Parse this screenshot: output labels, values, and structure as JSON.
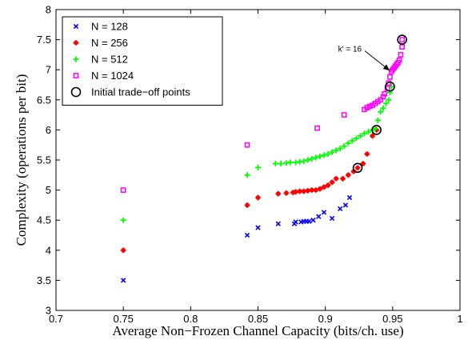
{
  "chart_data": {
    "type": "scatter",
    "title": "",
    "xlabel": "Average Non−Frozen Channel Capacity (bits/ch. use)",
    "ylabel": "Complexity (operations per bit)",
    "xlim": [
      0.7,
      1.0
    ],
    "ylim": [
      3,
      8
    ],
    "xticks": [
      "0.7",
      "0.75",
      "0.8",
      "0.85",
      "0.9",
      "0.95",
      "1"
    ],
    "yticks": [
      "3",
      "3.5",
      "4",
      "4.5",
      "5",
      "5.5",
      "6",
      "6.5",
      "7",
      "7.5",
      "8"
    ],
    "grid": false,
    "legend_position": "top-left",
    "series": [
      {
        "name": "N = 128",
        "marker": "x",
        "color": "#0000ff",
        "points": [
          [
            0.75,
            3.5
          ],
          [
            0.842,
            4.25
          ],
          [
            0.85,
            4.375
          ],
          [
            0.865,
            4.44
          ],
          [
            0.877,
            4.44
          ],
          [
            0.878,
            4.47
          ],
          [
            0.882,
            4.47
          ],
          [
            0.884,
            4.48
          ],
          [
            0.886,
            4.48
          ],
          [
            0.888,
            4.48
          ],
          [
            0.891,
            4.5
          ],
          [
            0.895,
            4.56
          ],
          [
            0.899,
            4.63
          ],
          [
            0.905,
            4.53
          ],
          [
            0.911,
            4.69
          ],
          [
            0.915,
            4.75
          ],
          [
            0.918,
            4.875
          ]
        ]
      },
      {
        "name": "N = 256",
        "marker": "*",
        "color": "#ff0000",
        "points": [
          [
            0.75,
            4.0
          ],
          [
            0.842,
            4.75
          ],
          [
            0.85,
            4.875
          ],
          [
            0.865,
            4.94
          ],
          [
            0.871,
            4.95
          ],
          [
            0.876,
            4.96
          ],
          [
            0.878,
            4.97
          ],
          [
            0.881,
            4.98
          ],
          [
            0.884,
            4.98
          ],
          [
            0.887,
            4.99
          ],
          [
            0.89,
            5.0
          ],
          [
            0.893,
            5.0
          ],
          [
            0.896,
            5.02
          ],
          [
            0.899,
            5.05
          ],
          [
            0.902,
            5.08
          ],
          [
            0.905,
            5.13
          ],
          [
            0.908,
            5.19
          ],
          [
            0.913,
            5.19
          ],
          [
            0.917,
            5.25
          ],
          [
            0.921,
            5.31
          ],
          [
            0.924,
            5.37
          ],
          [
            0.928,
            5.44
          ],
          [
            0.931,
            5.6
          ],
          [
            0.935,
            5.9
          ],
          [
            0.938,
            6.0
          ]
        ]
      },
      {
        "name": "N = 512",
        "marker": "+",
        "color": "#00ff00",
        "points": [
          [
            0.75,
            4.5
          ],
          [
            0.842,
            5.25
          ],
          [
            0.85,
            5.375
          ],
          [
            0.863,
            5.44
          ],
          [
            0.867,
            5.44
          ],
          [
            0.871,
            5.45
          ],
          [
            0.874,
            5.46
          ],
          [
            0.878,
            5.46
          ],
          [
            0.881,
            5.47
          ],
          [
            0.884,
            5.48
          ],
          [
            0.887,
            5.5
          ],
          [
            0.89,
            5.52
          ],
          [
            0.893,
            5.54
          ],
          [
            0.896,
            5.56
          ],
          [
            0.899,
            5.58
          ],
          [
            0.902,
            5.6
          ],
          [
            0.905,
            5.63
          ],
          [
            0.908,
            5.66
          ],
          [
            0.911,
            5.69
          ],
          [
            0.914,
            5.73
          ],
          [
            0.917,
            5.78
          ],
          [
            0.92,
            5.82
          ],
          [
            0.923,
            5.86
          ],
          [
            0.926,
            5.9
          ],
          [
            0.929,
            5.94
          ],
          [
            0.932,
            5.97
          ],
          [
            0.935,
            6.0
          ],
          [
            0.937,
            6.02
          ],
          [
            0.939,
            6.16
          ],
          [
            0.941,
            6.3
          ],
          [
            0.943,
            6.36
          ],
          [
            0.945,
            6.44
          ],
          [
            0.947,
            6.5
          ],
          [
            0.948,
            6.62
          ],
          [
            0.949,
            6.72
          ]
        ]
      },
      {
        "name": "N = 1024",
        "marker": "square",
        "color": "#ff00ff",
        "points": [
          [
            0.75,
            5.0
          ],
          [
            0.842,
            5.75
          ],
          [
            0.894,
            6.03
          ],
          [
            0.914,
            6.25
          ],
          [
            0.929,
            6.34
          ],
          [
            0.931,
            6.37
          ],
          [
            0.933,
            6.39
          ],
          [
            0.935,
            6.41
          ],
          [
            0.937,
            6.44
          ],
          [
            0.939,
            6.47
          ],
          [
            0.941,
            6.5
          ],
          [
            0.943,
            6.55
          ],
          [
            0.944,
            6.6
          ],
          [
            0.946,
            6.69
          ],
          [
            0.947,
            6.78
          ],
          [
            0.948,
            6.88
          ],
          [
            0.949,
            6.97
          ],
          [
            0.95,
            7.0
          ],
          [
            0.951,
            7.03
          ],
          [
            0.952,
            7.06
          ],
          [
            0.953,
            7.09
          ],
          [
            0.954,
            7.12
          ],
          [
            0.955,
            7.16
          ],
          [
            0.956,
            7.25
          ],
          [
            0.957,
            7.38
          ],
          [
            0.957,
            7.5
          ]
        ]
      }
    ],
    "tradeoff_series": {
      "name": "Initial trade−off points",
      "marker": "circle",
      "color": "#000000",
      "points": [
        [
          0.924,
          5.37
        ],
        [
          0.938,
          6.0
        ],
        [
          0.948,
          6.72
        ],
        [
          0.957,
          7.5
        ]
      ]
    },
    "annotations": [
      {
        "text": "k' = 16",
        "x": 0.927,
        "y": 7.3,
        "arrow_to": [
          0.949,
          6.96
        ]
      }
    ]
  }
}
